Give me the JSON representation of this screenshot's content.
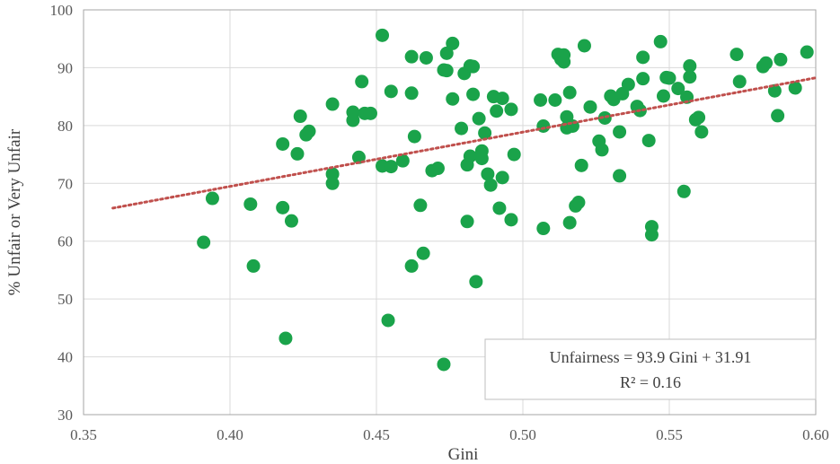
{
  "chart_data": {
    "type": "scatter",
    "xlabel": "Gini",
    "ylabel": "% Unfair or Very Unfair",
    "xlim": [
      0.35,
      0.6
    ],
    "ylim": [
      30,
      100
    ],
    "x_ticks": [
      "0.35",
      "0.40",
      "0.45",
      "0.50",
      "0.55",
      "0.60"
    ],
    "y_ticks": [
      "30",
      "40",
      "50",
      "60",
      "70",
      "80",
      "90",
      "100"
    ],
    "grid": true,
    "marker_color": "#1aa34a",
    "trendline_color": "#c0504d",
    "trendline": {
      "slope": 93.9,
      "intercept": 31.91,
      "x_range": [
        0.36,
        0.6
      ]
    },
    "annotation": {
      "line1": "Unfairness = 93.9 Gini + 31.91",
      "line2": "R² = 0.16"
    },
    "points": [
      [
        0.391,
        59.8
      ],
      [
        0.394,
        67.4
      ],
      [
        0.407,
        66.4
      ],
      [
        0.408,
        55.7
      ],
      [
        0.418,
        76.8
      ],
      [
        0.418,
        65.8
      ],
      [
        0.419,
        43.2
      ],
      [
        0.421,
        63.5
      ],
      [
        0.423,
        75.1
      ],
      [
        0.424,
        81.6
      ],
      [
        0.426,
        78.4
      ],
      [
        0.427,
        79.0
      ],
      [
        0.435,
        70.0
      ],
      [
        0.435,
        71.6
      ],
      [
        0.435,
        83.7
      ],
      [
        0.442,
        82.3
      ],
      [
        0.442,
        80.9
      ],
      [
        0.444,
        74.5
      ],
      [
        0.445,
        87.6
      ],
      [
        0.446,
        82.1
      ],
      [
        0.448,
        82.1
      ],
      [
        0.452,
        73.0
      ],
      [
        0.452,
        95.6
      ],
      [
        0.454,
        46.3
      ],
      [
        0.455,
        85.9
      ],
      [
        0.455,
        72.9
      ],
      [
        0.459,
        73.9
      ],
      [
        0.462,
        91.9
      ],
      [
        0.462,
        85.6
      ],
      [
        0.462,
        55.7
      ],
      [
        0.463,
        78.1
      ],
      [
        0.465,
        66.2
      ],
      [
        0.466,
        57.9
      ],
      [
        0.467,
        91.7
      ],
      [
        0.469,
        72.2
      ],
      [
        0.471,
        72.6
      ],
      [
        0.473,
        89.6
      ],
      [
        0.473,
        38.7
      ],
      [
        0.474,
        92.5
      ],
      [
        0.474,
        89.5
      ],
      [
        0.476,
        94.2
      ],
      [
        0.476,
        84.6
      ],
      [
        0.479,
        79.5
      ],
      [
        0.48,
        89.0
      ],
      [
        0.481,
        63.4
      ],
      [
        0.481,
        73.2
      ],
      [
        0.482,
        74.7
      ],
      [
        0.482,
        90.3
      ],
      [
        0.483,
        90.2
      ],
      [
        0.483,
        85.4
      ],
      [
        0.484,
        53.0
      ],
      [
        0.485,
        81.2
      ],
      [
        0.486,
        75.6
      ],
      [
        0.486,
        74.3
      ],
      [
        0.487,
        78.7
      ],
      [
        0.488,
        71.6
      ],
      [
        0.489,
        69.7
      ],
      [
        0.49,
        85.0
      ],
      [
        0.491,
        82.5
      ],
      [
        0.492,
        65.7
      ],
      [
        0.493,
        71.0
      ],
      [
        0.493,
        84.7
      ],
      [
        0.496,
        63.7
      ],
      [
        0.496,
        82.8
      ],
      [
        0.497,
        75.0
      ],
      [
        0.506,
        84.4
      ],
      [
        0.507,
        79.9
      ],
      [
        0.507,
        62.2
      ],
      [
        0.511,
        84.4
      ],
      [
        0.512,
        92.3
      ],
      [
        0.513,
        91.5
      ],
      [
        0.514,
        92.2
      ],
      [
        0.514,
        91.0
      ],
      [
        0.515,
        81.5
      ],
      [
        0.515,
        79.6
      ],
      [
        0.516,
        85.7
      ],
      [
        0.516,
        63.2
      ],
      [
        0.517,
        79.9
      ],
      [
        0.518,
        66.1
      ],
      [
        0.519,
        66.7
      ],
      [
        0.52,
        73.1
      ],
      [
        0.521,
        93.8
      ],
      [
        0.523,
        83.2
      ],
      [
        0.526,
        77.3
      ],
      [
        0.527,
        75.8
      ],
      [
        0.528,
        81.3
      ],
      [
        0.53,
        85.1
      ],
      [
        0.531,
        84.5
      ],
      [
        0.533,
        71.3
      ],
      [
        0.533,
        78.9
      ],
      [
        0.534,
        85.5
      ],
      [
        0.536,
        87.1
      ],
      [
        0.539,
        83.3
      ],
      [
        0.54,
        82.6
      ],
      [
        0.541,
        91.8
      ],
      [
        0.541,
        88.1
      ],
      [
        0.543,
        77.4
      ],
      [
        0.544,
        62.5
      ],
      [
        0.544,
        61.1
      ],
      [
        0.547,
        94.5
      ],
      [
        0.548,
        85.1
      ],
      [
        0.549,
        88.3
      ],
      [
        0.55,
        88.2
      ],
      [
        0.553,
        86.4
      ],
      [
        0.555,
        68.6
      ],
      [
        0.556,
        84.9
      ],
      [
        0.557,
        88.4
      ],
      [
        0.557,
        90.3
      ],
      [
        0.559,
        81.0
      ],
      [
        0.56,
        81.4
      ],
      [
        0.561,
        78.9
      ],
      [
        0.573,
        92.3
      ],
      [
        0.574,
        87.6
      ],
      [
        0.582,
        90.2
      ],
      [
        0.583,
        90.8
      ],
      [
        0.586,
        86.0
      ],
      [
        0.587,
        81.7
      ],
      [
        0.588,
        91.4
      ],
      [
        0.593,
        86.5
      ],
      [
        0.597,
        92.7
      ]
    ]
  }
}
